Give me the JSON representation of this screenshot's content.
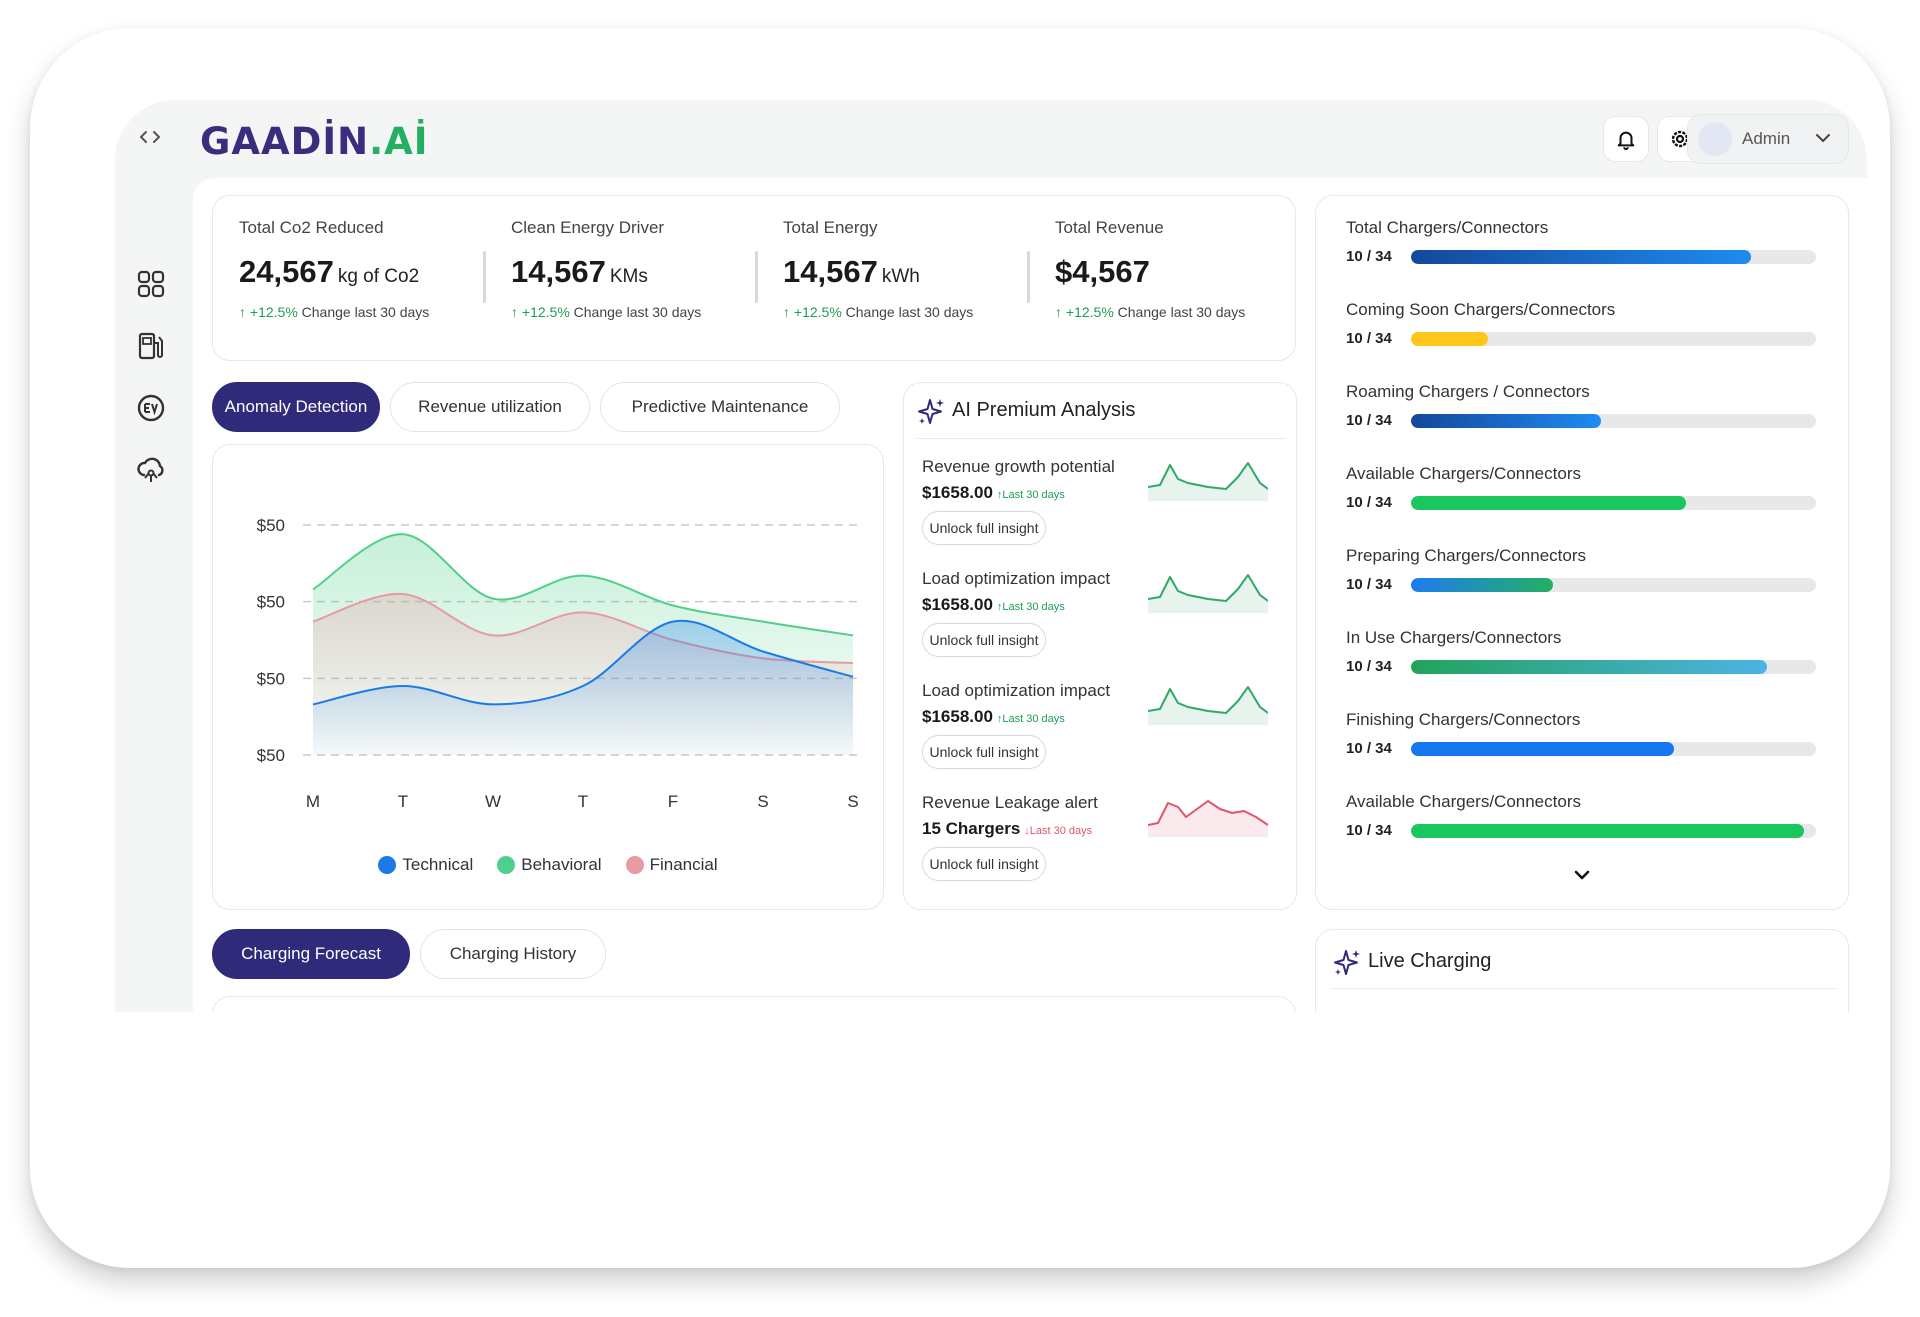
{
  "app": {
    "logo_main": "GAADİN",
    "logo_dot": ".",
    "logo_suffix": "Aİ"
  },
  "header": {
    "user_name": "Admin"
  },
  "stats": [
    {
      "label": "Total Co2 Reduced",
      "value": "24,567",
      "unit": "kg of Co2",
      "change_pct": "+12.5%",
      "change_text": "Change last 30 days"
    },
    {
      "label": "Clean Energy Driver",
      "value": "14,567",
      "unit": "KMs",
      "change_pct": "+12.5%",
      "change_text": "Change last 30 days"
    },
    {
      "label": "Total Energy",
      "value": "14,567",
      "unit": "kWh",
      "change_pct": "+12.5%",
      "change_text": "Change last 30 days"
    },
    {
      "label": "Total Revenue",
      "value": "$4,567",
      "unit": "",
      "change_pct": "+12.5%",
      "change_text": "Change last 30 days"
    }
  ],
  "analysis_tabs": [
    "Anomaly Detection",
    "Revenue utilization",
    "Predictive Maintenance"
  ],
  "chart_data": {
    "type": "area",
    "categories": [
      "M",
      "T",
      "W",
      "T",
      "F",
      "S",
      "S"
    ],
    "y_tick_labels": [
      "$50",
      "$50",
      "$50",
      "$50"
    ],
    "grid": "dashed horizontal",
    "legend_position": "bottom",
    "series": [
      {
        "name": "Technical",
        "color": "#1a7be8",
        "values": [
          22,
          30,
          22,
          30,
          58,
          45,
          34
        ]
      },
      {
        "name": "Behavioral",
        "color": "#4fd08a",
        "values": [
          72,
          96,
          68,
          78,
          65,
          58,
          52
        ]
      },
      {
        "name": "Financial",
        "color": "#e89aa2",
        "values": [
          58,
          70,
          52,
          62,
          50,
          42,
          40
        ]
      }
    ]
  },
  "ai_panel": {
    "title": "AI Premium Analysis",
    "insights": [
      {
        "title": "Revenue growth potential",
        "value": "$1658.00",
        "period": "Last 30 days",
        "trend": "up",
        "button": "Unlock full insight",
        "spark_color": "#2fa86a"
      },
      {
        "title": "Load optimization impact",
        "value": "$1658.00",
        "period": "Last 30 days",
        "trend": "up",
        "button": "Unlock full insight",
        "spark_color": "#2fa86a"
      },
      {
        "title": "Load optimization impact",
        "value": "$1658.00",
        "period": "Last 30 days",
        "trend": "up",
        "button": "Unlock full insight",
        "spark_color": "#2fa86a"
      },
      {
        "title": "Revenue Leakage alert",
        "value": "15 Chargers",
        "period": "Last 30 days",
        "trend": "down",
        "button": "Unlock full insight",
        "spark_color": "#e0556a"
      }
    ]
  },
  "chargers": [
    {
      "label": "Total Chargers/Connectors",
      "count": "10 / 34",
      "fill": 0.84,
      "color": "linear-gradient(90deg,#13489b,#1e8bf0)"
    },
    {
      "label": "Coming Soon Chargers/Connectors",
      "count": "10 / 34",
      "fill": 0.19,
      "color": "#ffc619"
    },
    {
      "label": "Roaming Chargers / Connectors",
      "count": "10 / 34",
      "fill": 0.47,
      "color": "linear-gradient(90deg,#13489b,#1e8bf0)"
    },
    {
      "label": "Available Chargers/Connectors",
      "count": "10 / 34",
      "fill": 0.68,
      "color": "#19c75e"
    },
    {
      "label": "Preparing Chargers/Connectors",
      "count": "10 / 34",
      "fill": 0.35,
      "color": "linear-gradient(90deg,#1e7bf0,#23b063)"
    },
    {
      "label": "In Use Chargers/Connectors",
      "count": "10 / 34",
      "fill": 0.88,
      "color": "linear-gradient(90deg,#23a25b,#4cb3e6)"
    },
    {
      "label": "Finishing Chargers/Connectors",
      "count": "10 / 34",
      "fill": 0.65,
      "color": "#1577f0"
    },
    {
      "label": "Available Chargers/Connectors",
      "count": "10 / 34",
      "fill": 0.97,
      "color": "#19c75e"
    }
  ],
  "forecast_tabs": [
    "Charging Forecast",
    "Charging History"
  ],
  "live": {
    "title": "Live Charging"
  }
}
